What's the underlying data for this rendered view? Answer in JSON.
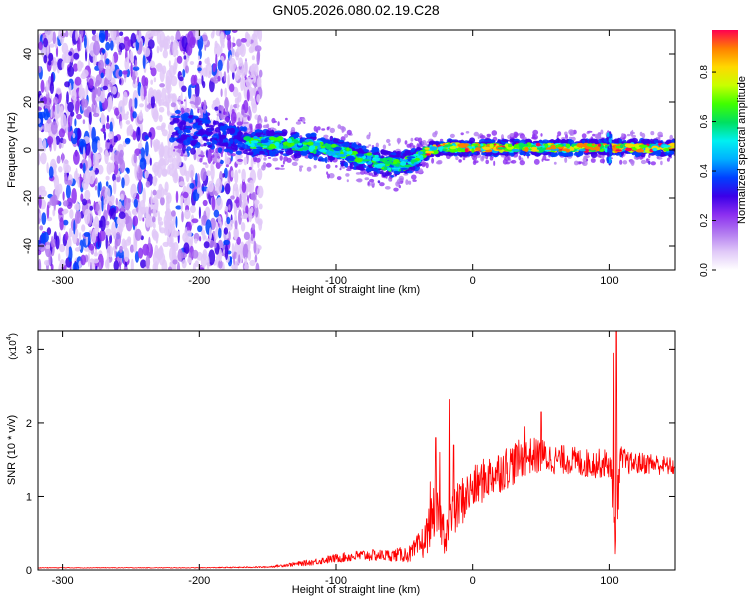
{
  "title": "GN05.2026.080.02.19.C28",
  "chart_data": [
    {
      "type": "heatmap",
      "title": "GN05.2026.080.02.19.C28",
      "xlabel": "Height of straight line (km)",
      "ylabel": "Frequency (Hz)",
      "xlim": [
        -318,
        148
      ],
      "ylim": [
        -50,
        50
      ],
      "xticks": [
        -300,
        -200,
        -100,
        0,
        100
      ],
      "yticks": [
        -40,
        -20,
        0,
        20,
        40
      ],
      "colorbar": {
        "label": "Normalized spectral amplitude",
        "range": [
          0.0,
          0.97
        ],
        "ticks": [
          "0.0",
          "0.2",
          "0.4",
          "0.6",
          "0.8"
        ],
        "colors": [
          "#ffffff",
          "#e0c8f8",
          "#b27af0",
          "#8c2ff0",
          "#3b00e8",
          "#0040ff",
          "#00b0ff",
          "#00f0f0",
          "#00e060",
          "#40ff00",
          "#c8ff00",
          "#ffd800",
          "#ff8000",
          "#ff0050"
        ]
      },
      "ridge": {
        "x": [
          -215,
          -200,
          -160,
          -140,
          -120,
          -105,
          -90,
          -75,
          -60,
          -50,
          -42,
          -35,
          -25,
          -10,
          0,
          20,
          60,
          100,
          148
        ],
        "y": [
          10,
          7,
          3,
          3,
          2,
          0,
          -2,
          -4,
          -6,
          -6,
          -4,
          -1,
          1,
          1,
          1,
          1,
          1,
          1,
          1
        ],
        "half_width": [
          6,
          6,
          5,
          5,
          5,
          5,
          5,
          5,
          5,
          5,
          4,
          3,
          3,
          3,
          3,
          3,
          3,
          3,
          3
        ]
      },
      "noise_region_x": [
        -318,
        -155
      ]
    },
    {
      "type": "line",
      "xlabel": "Height of straight line (km)",
      "ylabel": "SNR (10 * v/v)",
      "y_scale_label": "(x10",
      "y_scale_exponent": "4",
      "xlim": [
        -318,
        148
      ],
      "ylim": [
        0,
        3.25
      ],
      "xticks": [
        -300,
        -200,
        -100,
        0,
        100
      ],
      "yticks": [
        0,
        1,
        2,
        3
      ],
      "color": "#ff0000",
      "series": [
        {
          "name": "SNR",
          "envelope_x": [
            -318,
            -200,
            -150,
            -120,
            -100,
            -80,
            -60,
            -45,
            -35,
            -28,
            -22,
            -20,
            -10,
            0,
            10,
            20,
            30,
            40,
            50,
            60,
            70,
            80,
            90,
            100,
            103,
            105,
            108,
            115,
            130,
            148
          ],
          "envelope_y": [
            0.03,
            0.03,
            0.04,
            0.1,
            0.16,
            0.2,
            0.2,
            0.22,
            0.4,
            0.8,
            0.6,
            0.5,
            0.9,
            1.1,
            1.25,
            1.35,
            1.45,
            1.55,
            1.55,
            1.5,
            1.5,
            1.45,
            1.45,
            1.45,
            1.0,
            0.8,
            1.5,
            1.45,
            1.45,
            1.4
          ],
          "noise": [
            0.005,
            0.005,
            0.01,
            0.04,
            0.06,
            0.08,
            0.08,
            0.12,
            0.25,
            0.35,
            0.3,
            0.3,
            0.35,
            0.3,
            0.3,
            0.3,
            0.3,
            0.25,
            0.25,
            0.2,
            0.2,
            0.2,
            0.2,
            0.2,
            0.4,
            0.5,
            0.2,
            0.15,
            0.15,
            0.12
          ],
          "spikes": [
            {
              "x": -31,
              "y": 1.2
            },
            {
              "x": -27,
              "y": 1.8
            },
            {
              "x": -24,
              "y": 1.6
            },
            {
              "x": -17,
              "y": 2.32
            },
            {
              "x": -14,
              "y": 1.7
            },
            {
              "x": 38,
              "y": 1.95
            },
            {
              "x": 50,
              "y": 2.15
            },
            {
              "x": 103,
              "y": 2.95
            },
            {
              "x": 105,
              "y": 3.25
            },
            {
              "x": 104,
              "y": 0.22
            }
          ]
        }
      ]
    }
  ]
}
